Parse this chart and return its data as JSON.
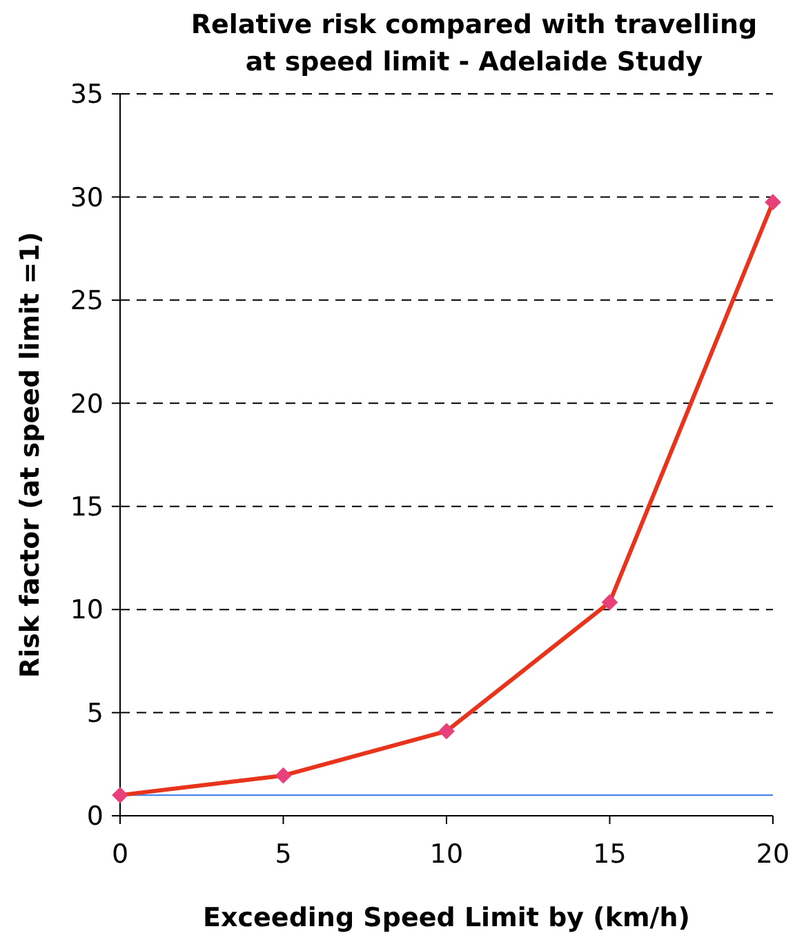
{
  "chart_data": {
    "type": "line",
    "title": "Relative risk compared with travelling at speed limit - Adelaide Study",
    "xlabel": "Exceeding Speed Limit by (km/h)",
    "ylabel": "Risk factor (at speed limit =1)",
    "x": [
      0,
      5,
      10,
      15,
      20
    ],
    "series": [
      {
        "color": "#e8341c",
        "values": [
          1,
          1.95,
          4.1,
          10.35,
          29.75
        ]
      }
    ],
    "xlim": [
      0,
      20
    ],
    "xticks": [
      0,
      5,
      10,
      15,
      20
    ],
    "ylim": [
      0,
      35
    ],
    "yticks": [
      0,
      5,
      10,
      15,
      20,
      25,
      30,
      35
    ],
    "grid": "y",
    "marker": "diamond",
    "line_style": "solid",
    "ref_lines": [
      {
        "axis": "y",
        "value": 1,
        "color": "#4a86e8"
      }
    ]
  }
}
